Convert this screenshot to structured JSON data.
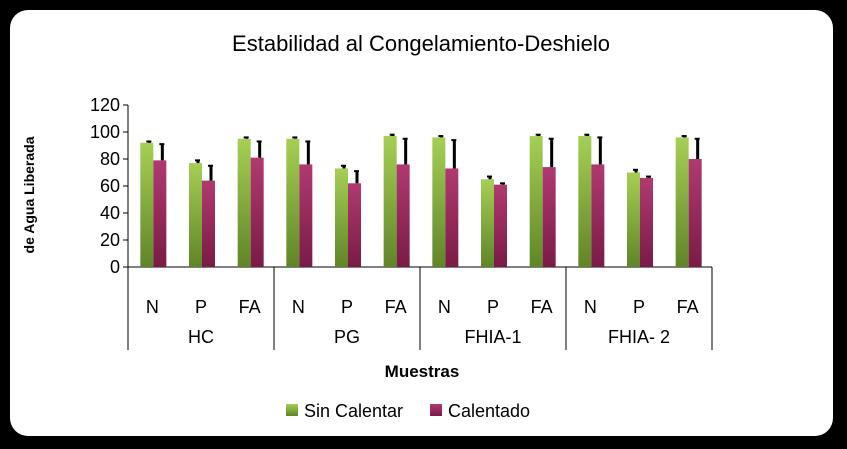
{
  "chart_data": {
    "type": "bar",
    "title": "Estabilidad al Congelamiento-Deshielo",
    "xlabel": "Muestras",
    "ylabel": "de Agua Liberada",
    "ylim": [
      0,
      120
    ],
    "yticks": [
      0,
      20,
      40,
      60,
      80,
      100,
      120
    ],
    "groups": [
      {
        "label": "HC",
        "categories": [
          "N",
          "P",
          "FA"
        ]
      },
      {
        "label": "PG",
        "categories": [
          "N",
          "P",
          "FA"
        ]
      },
      {
        "label": "FHIA-1",
        "categories": [
          "N",
          "P",
          "FA"
        ]
      },
      {
        "label": "FHIA- 2",
        "categories": [
          "N",
          "P",
          "FA"
        ]
      }
    ],
    "series": [
      {
        "name": "Sin Calentar",
        "color": "#7fa23a",
        "values": [
          92,
          77,
          95,
          95,
          73,
          97,
          96,
          65,
          97,
          97,
          70,
          96
        ],
        "errors": [
          1,
          2,
          1,
          1,
          2,
          1,
          1,
          2,
          1,
          1,
          2,
          1
        ]
      },
      {
        "name": "Calentado",
        "color": "#9c2a5e",
        "values": [
          79,
          64,
          81,
          76,
          62,
          76,
          73,
          61,
          74,
          76,
          66,
          80
        ],
        "errors": [
          12,
          11,
          12,
          17,
          9,
          19,
          21,
          1,
          21,
          20,
          1,
          15
        ]
      }
    ],
    "grid": false,
    "legend": "bottom"
  }
}
